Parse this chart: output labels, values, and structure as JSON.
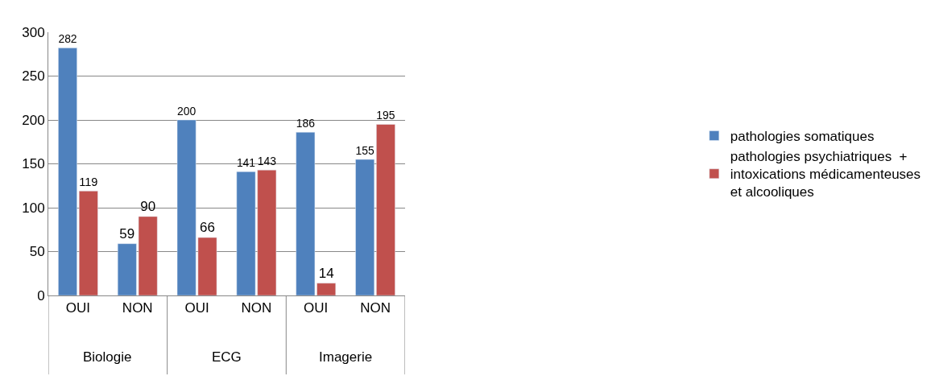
{
  "chart_data": {
    "type": "bar",
    "categories": [
      "OUI",
      "NON",
      "OUI",
      "NON",
      "OUI",
      "NON"
    ],
    "series": [
      {
        "name": "pathologies somatiques",
        "color": "#4f81bd",
        "values": [
          282,
          59,
          200,
          141,
          186,
          155
        ]
      },
      {
        "name": "pathologies psychiatriques  + intoxications médicamenteuses et alcooliques",
        "color": "#c0504d",
        "values": [
          119,
          90,
          66,
          143,
          14,
          195
        ]
      }
    ],
    "annotations": [
      "Biologie",
      "ECG",
      "Imagerie"
    ],
    "ylim": [
      0,
      300
    ],
    "yticks": [
      0,
      50,
      100,
      150,
      200,
      250,
      300
    ],
    "grid": "y",
    "legend": "right",
    "data_labels": true
  }
}
